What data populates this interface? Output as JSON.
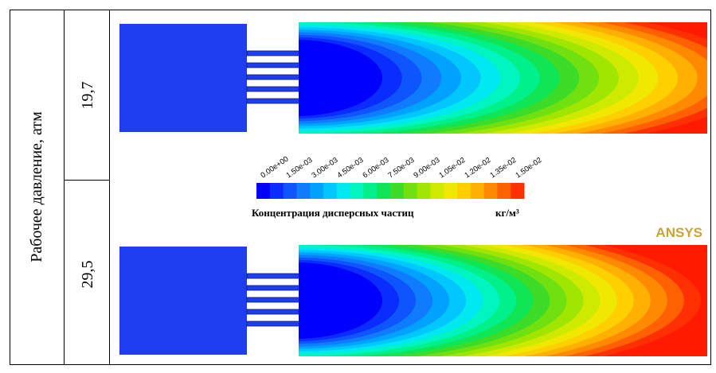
{
  "table": {
    "row_header": "Рабочее давление, атм",
    "rows": [
      {
        "pressure": "19,7"
      },
      {
        "pressure": "29,5"
      }
    ]
  },
  "colorbar": {
    "ticks": [
      "0.00e+00",
      "1.50e-03",
      "3.00e-03",
      "4.50e-03",
      "6.00e-03",
      "7.50e-03",
      "9.00e-03",
      "1.05e-02",
      "1.20e-02",
      "1.35e-02",
      "1.50e-02"
    ],
    "label": "Концентрация дисперсных частиц",
    "unit": "кг/м³"
  },
  "logo": "ANSYS"
}
